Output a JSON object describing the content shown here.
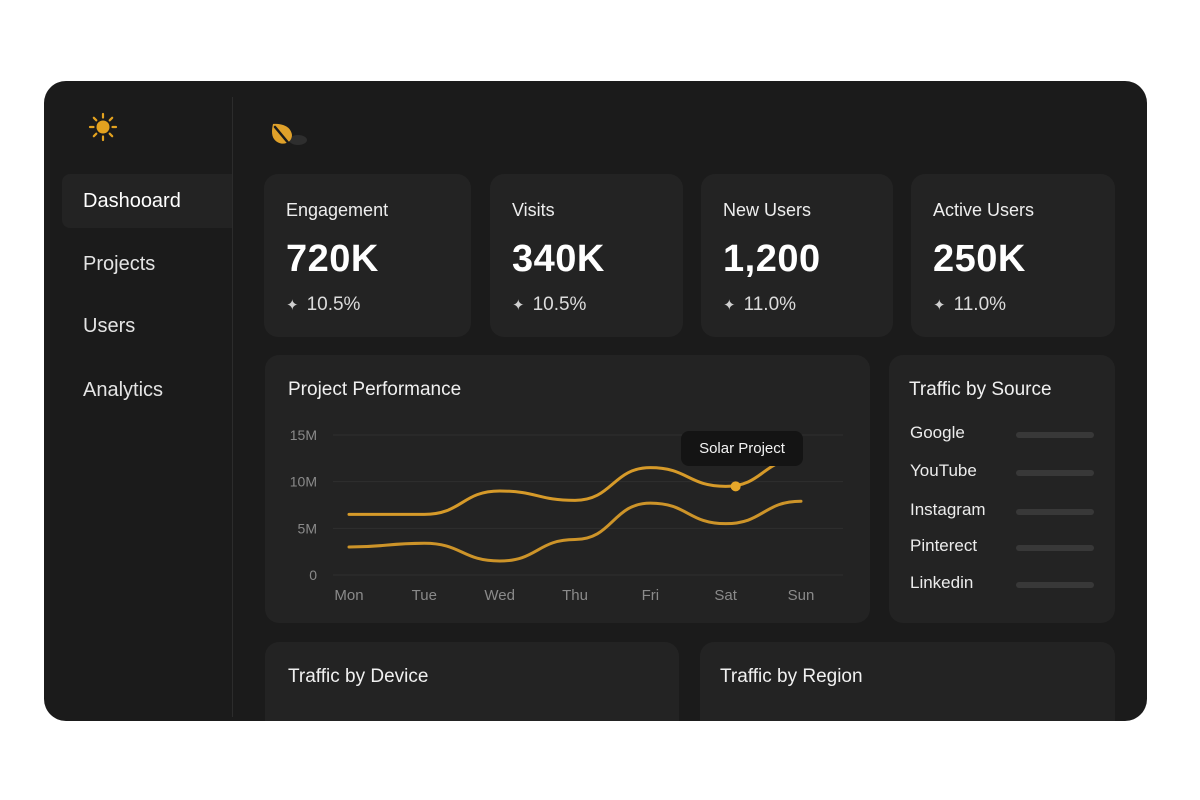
{
  "sidebar": {
    "logo_icon": "sun-icon",
    "items": [
      {
        "label": "Dashooard",
        "active": true
      },
      {
        "label": "Projects",
        "active": false
      },
      {
        "label": "Users",
        "active": false
      },
      {
        "label": "Analytics",
        "active": false
      }
    ]
  },
  "header": {
    "brand_icon": "leaf-icon"
  },
  "stats": [
    {
      "title": "Engagement",
      "value": "720K",
      "delta": "10.5%"
    },
    {
      "title": "Visits",
      "value": "340K",
      "delta": "10.5%"
    },
    {
      "title": "New Users",
      "value": "1,200",
      "delta": "11.0%"
    },
    {
      "title": "Active Users",
      "value": "250K",
      "delta": "11.0%"
    }
  ],
  "performance": {
    "title": "Project Performance",
    "tooltip": "Solar Project",
    "chart_data": {
      "type": "line",
      "categories": [
        "Mon",
        "Tue",
        "Wed",
        "Thu",
        "Fri",
        "Sat",
        "Sun"
      ],
      "y_ticks": [
        "0",
        "5M",
        "10M",
        "15M"
      ],
      "ylim": [
        0,
        15
      ],
      "series": [
        {
          "values": [
            6.5,
            6.5,
            9,
            8,
            11.5,
            9.5,
            12.5
          ],
          "color": "#e0a12a"
        },
        {
          "values": [
            3,
            3.4,
            1.5,
            3.8,
            7.7,
            5.5,
            7.9
          ],
          "color": "#e0a12a"
        }
      ],
      "highlight": {
        "category": "Sat",
        "value": 9.5
      }
    }
  },
  "traffic_source": {
    "title": "Traffic by Source",
    "items": [
      "Google",
      "YouTube",
      "Instagram",
      "Pinterect",
      "Linkedin"
    ]
  },
  "traffic_device": {
    "title": "Traffic by Device"
  },
  "traffic_region": {
    "title": "Traffic by Region"
  },
  "colors": {
    "accent": "#e0a12a",
    "background": "#1b1b1b",
    "card": "#232323"
  }
}
